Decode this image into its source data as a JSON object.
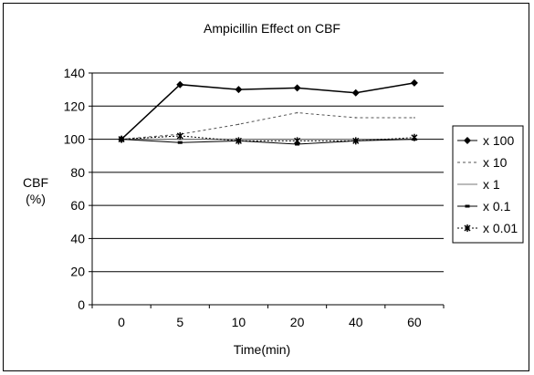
{
  "chart_data": {
    "type": "line",
    "title": "Ampicillin Effect on CBF",
    "xlabel": "Time(min)",
    "ylabel_line1": "CBF",
    "ylabel_line2": "(%)",
    "categories": [
      "0",
      "5",
      "10",
      "20",
      "40",
      "60"
    ],
    "ylim": [
      0,
      140
    ],
    "yticks": [
      0,
      20,
      40,
      60,
      80,
      100,
      120,
      140
    ],
    "grid": true,
    "legend_position": "right",
    "series": [
      {
        "name": "x 100",
        "values": [
          100,
          133,
          130,
          131,
          128,
          134
        ],
        "color": "#000000",
        "marker": "diamond",
        "dash": ""
      },
      {
        "name": "x 10",
        "values": [
          100,
          103,
          109,
          116,
          113,
          113
        ],
        "color": "#555555",
        "marker": "none",
        "dash": "3,3"
      },
      {
        "name": "x 1",
        "values": [
          100,
          100,
          100,
          100,
          100,
          100
        ],
        "color": "#777777",
        "marker": "none",
        "dash": ""
      },
      {
        "name": "x 0.1",
        "values": [
          100,
          98,
          99,
          97,
          99,
          100
        ],
        "color": "#000000",
        "marker": "dash",
        "dash": ""
      },
      {
        "name": "x 0.01",
        "values": [
          100,
          102,
          99,
          99,
          99,
          101
        ],
        "color": "#000000",
        "marker": "star",
        "dash": "2,2"
      }
    ]
  }
}
